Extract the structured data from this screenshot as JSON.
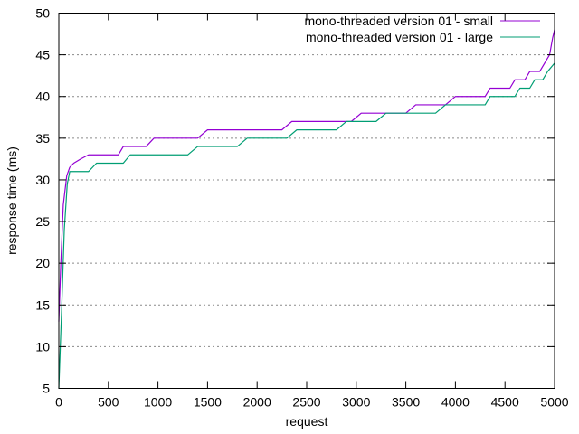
{
  "chart_data": {
    "type": "line",
    "title": "",
    "xlabel": "request",
    "ylabel": "response time (ms)",
    "xlim": [
      0,
      5000
    ],
    "ylim": [
      5,
      50
    ],
    "xticks": [
      0,
      500,
      1000,
      1500,
      2000,
      2500,
      3000,
      3500,
      4000,
      4500,
      5000
    ],
    "yticks": [
      5,
      10,
      15,
      20,
      25,
      30,
      35,
      40,
      45,
      50
    ],
    "grid": "horizontal-dotted",
    "legend_position": "top-right",
    "series": [
      {
        "name": "mono-threaded version 01 - small",
        "color": "#9400d3",
        "points": [
          [
            0,
            13
          ],
          [
            20,
            20
          ],
          [
            45,
            27
          ],
          [
            80,
            30.5
          ],
          [
            110,
            31.5
          ],
          [
            150,
            32
          ],
          [
            220,
            32.5
          ],
          [
            300,
            33
          ],
          [
            600,
            33
          ],
          [
            650,
            34
          ],
          [
            880,
            34
          ],
          [
            960,
            35
          ],
          [
            1400,
            35
          ],
          [
            1500,
            36
          ],
          [
            2250,
            36
          ],
          [
            2350,
            37
          ],
          [
            2950,
            37
          ],
          [
            3050,
            38
          ],
          [
            3500,
            38
          ],
          [
            3600,
            39
          ],
          [
            3900,
            39
          ],
          [
            4000,
            40
          ],
          [
            4300,
            40
          ],
          [
            4350,
            41
          ],
          [
            4550,
            41
          ],
          [
            4600,
            42
          ],
          [
            4700,
            42
          ],
          [
            4750,
            43
          ],
          [
            4850,
            43
          ],
          [
            4900,
            44
          ],
          [
            4950,
            45
          ],
          [
            4980,
            47
          ],
          [
            5000,
            48
          ]
        ]
      },
      {
        "name": "mono-threaded version 01 - large",
        "color": "#009e73",
        "points": [
          [
            0,
            5
          ],
          [
            30,
            15
          ],
          [
            55,
            24
          ],
          [
            85,
            29.5
          ],
          [
            110,
            31
          ],
          [
            300,
            31
          ],
          [
            380,
            32
          ],
          [
            650,
            32
          ],
          [
            720,
            33
          ],
          [
            1300,
            33
          ],
          [
            1400,
            34
          ],
          [
            1800,
            34
          ],
          [
            1900,
            35
          ],
          [
            2300,
            35
          ],
          [
            2400,
            36
          ],
          [
            2800,
            36
          ],
          [
            2900,
            37
          ],
          [
            3200,
            37
          ],
          [
            3300,
            38
          ],
          [
            3800,
            38
          ],
          [
            3900,
            39
          ],
          [
            4300,
            39
          ],
          [
            4350,
            40
          ],
          [
            4600,
            40
          ],
          [
            4650,
            41
          ],
          [
            4750,
            41
          ],
          [
            4800,
            42
          ],
          [
            4880,
            42
          ],
          [
            4930,
            43
          ],
          [
            5000,
            44
          ]
        ]
      }
    ]
  }
}
